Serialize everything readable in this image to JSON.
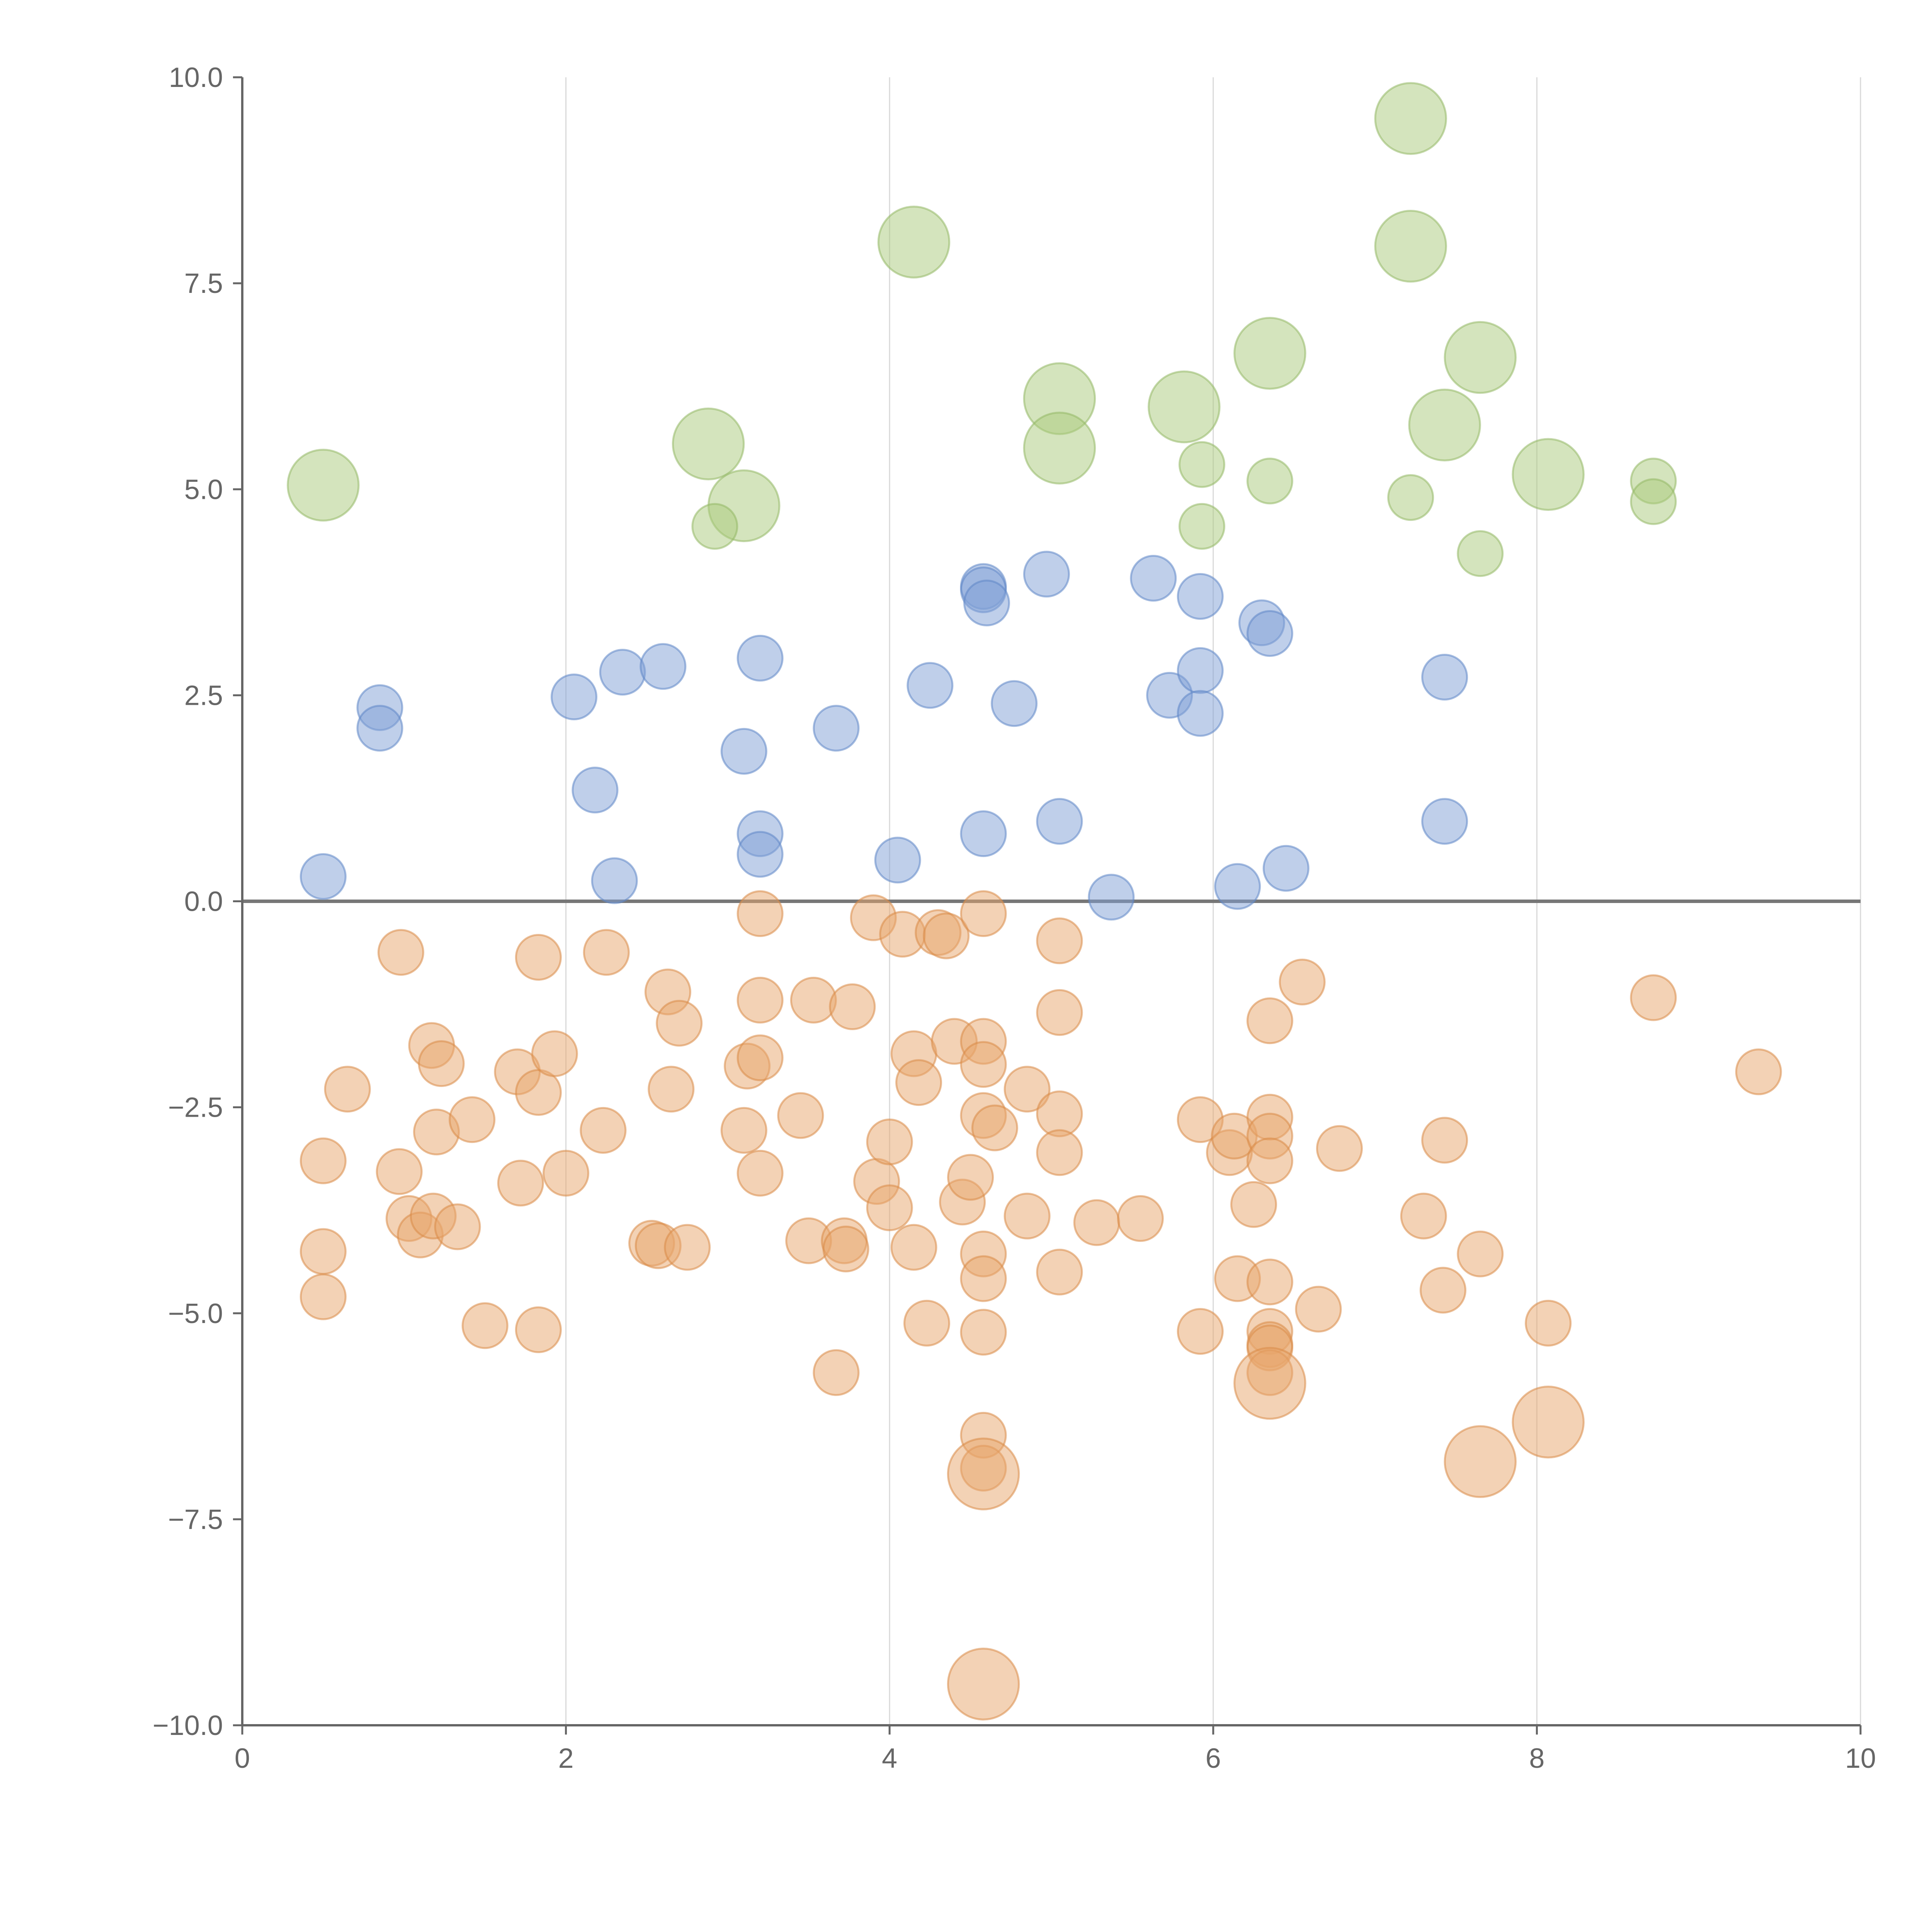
{
  "chart_data": {
    "type": "scatter",
    "subtype": "bubble",
    "title": "",
    "xlabel": "",
    "ylabel": "",
    "xlim": [
      0,
      10
    ],
    "ylim": [
      -10,
      10
    ],
    "x_ticks": [
      0,
      2,
      4,
      6,
      8,
      10
    ],
    "y_ticks": [
      -10,
      -7.5,
      -5,
      -2.5,
      0,
      2.5,
      5,
      7.5,
      10
    ],
    "x_tick_labels": [
      "0",
      "2",
      "4",
      "6",
      "8",
      "10"
    ],
    "y_tick_labels": [
      "−10.0",
      "−7.5",
      "−5.0",
      "−2.5",
      "0.0",
      "2.5",
      "5.0",
      "7.5",
      "10.0"
    ],
    "grid": {
      "vertical": true,
      "horizontal": false
    },
    "reference_line_y": 0,
    "legend": "none",
    "series": [
      {
        "name": "green",
        "color": "#a9c97b",
        "stroke": "#94b866",
        "size_unit": "relative",
        "points": [
          [
            0.5,
            5.05,
            2.5
          ],
          [
            2.88,
            5.55,
            2.5
          ],
          [
            3.1,
            4.8,
            2.5
          ],
          [
            2.92,
            4.55,
            1
          ],
          [
            4.15,
            8.0,
            2.5
          ],
          [
            5.05,
            6.1,
            2.5
          ],
          [
            5.05,
            5.5,
            2.5
          ],
          [
            5.82,
            6.0,
            2.5
          ],
          [
            5.93,
            5.3,
            1
          ],
          [
            5.93,
            4.55,
            1
          ],
          [
            6.35,
            6.65,
            2.5
          ],
          [
            6.35,
            5.1,
            1
          ],
          [
            7.22,
            9.5,
            2.5
          ],
          [
            7.22,
            7.95,
            2.5
          ],
          [
            7.22,
            4.9,
            1
          ],
          [
            7.43,
            5.78,
            2.5
          ],
          [
            7.65,
            6.6,
            2.5
          ],
          [
            7.65,
            4.22,
            1
          ],
          [
            8.07,
            5.18,
            2.5
          ],
          [
            8.72,
            5.1,
            1
          ],
          [
            8.72,
            4.85,
            1
          ]
        ]
      },
      {
        "name": "blue",
        "color": "#7fa0d5",
        "stroke": "#5f86c6",
        "size_unit": "relative",
        "points": [
          [
            0.5,
            0.3,
            1
          ],
          [
            0.85,
            2.35,
            1
          ],
          [
            0.85,
            2.1,
            1
          ],
          [
            2.05,
            2.48,
            1
          ],
          [
            2.18,
            1.35,
            1
          ],
          [
            2.3,
            0.25,
            1
          ],
          [
            2.35,
            2.78,
            1
          ],
          [
            2.6,
            2.85,
            1
          ],
          [
            3.1,
            1.82,
            1
          ],
          [
            3.2,
            2.95,
            1
          ],
          [
            3.2,
            0.82,
            1
          ],
          [
            3.2,
            0.57,
            1
          ],
          [
            3.67,
            2.1,
            1
          ],
          [
            4.05,
            0.5,
            1
          ],
          [
            4.25,
            2.62,
            1
          ],
          [
            4.58,
            3.82,
            1
          ],
          [
            4.58,
            3.78,
            1
          ],
          [
            4.6,
            3.62,
            1
          ],
          [
            4.58,
            0.82,
            1
          ],
          [
            4.77,
            2.4,
            1
          ],
          [
            4.97,
            3.97,
            1
          ],
          [
            5.05,
            0.97,
            1
          ],
          [
            5.37,
            0.05,
            1
          ],
          [
            5.63,
            3.92,
            1
          ],
          [
            5.73,
            2.5,
            1
          ],
          [
            5.92,
            3.7,
            1
          ],
          [
            5.92,
            2.8,
            1
          ],
          [
            5.92,
            2.28,
            1
          ],
          [
            6.15,
            0.18,
            1
          ],
          [
            6.3,
            3.38,
            1
          ],
          [
            6.35,
            3.25,
            1
          ],
          [
            6.45,
            0.4,
            1
          ],
          [
            7.43,
            2.72,
            1
          ],
          [
            7.43,
            0.97,
            1
          ]
        ]
      },
      {
        "name": "orange",
        "color": "#e8a56b",
        "stroke": "#d98a47",
        "size_unit": "relative",
        "points": [
          [
            0.5,
            -3.15,
            1
          ],
          [
            0.5,
            -4.25,
            1
          ],
          [
            0.5,
            -4.8,
            1
          ],
          [
            0.65,
            -2.28,
            1
          ],
          [
            0.97,
            -3.28,
            1
          ],
          [
            0.98,
            -0.62,
            1
          ],
          [
            1.03,
            -3.85,
            1
          ],
          [
            1.1,
            -4.05,
            1
          ],
          [
            1.17,
            -1.75,
            1
          ],
          [
            1.18,
            -3.82,
            1
          ],
          [
            1.2,
            -2.8,
            1
          ],
          [
            1.23,
            -1.97,
            1
          ],
          [
            1.33,
            -3.95,
            1
          ],
          [
            1.42,
            -2.65,
            1
          ],
          [
            1.5,
            -5.15,
            1
          ],
          [
            1.7,
            -2.07,
            1
          ],
          [
            1.72,
            -3.42,
            1
          ],
          [
            1.83,
            -0.68,
            1
          ],
          [
            1.83,
            -2.32,
            1
          ],
          [
            1.83,
            -5.2,
            1
          ],
          [
            1.93,
            -1.85,
            1
          ],
          [
            2.0,
            -3.3,
            1
          ],
          [
            2.23,
            -2.78,
            1
          ],
          [
            2.25,
            -0.62,
            1
          ],
          [
            2.53,
            -4.15,
            1
          ],
          [
            2.57,
            -4.18,
            1
          ],
          [
            2.63,
            -1.1,
            1
          ],
          [
            2.65,
            -2.28,
            1
          ],
          [
            2.7,
            -1.48,
            1
          ],
          [
            2.75,
            -4.2,
            1
          ],
          [
            3.1,
            -2.78,
            1
          ],
          [
            3.12,
            -2.0,
            1
          ],
          [
            3.2,
            -0.15,
            1
          ],
          [
            3.2,
            -1.2,
            1
          ],
          [
            3.2,
            -1.9,
            1
          ],
          [
            3.2,
            -3.3,
            1
          ],
          [
            3.45,
            -2.6,
            1
          ],
          [
            3.5,
            -4.12,
            1
          ],
          [
            3.53,
            -1.2,
            1
          ],
          [
            3.67,
            -5.72,
            1
          ],
          [
            3.72,
            -4.12,
            1
          ],
          [
            3.73,
            -4.22,
            1
          ],
          [
            3.77,
            -1.28,
            1
          ],
          [
            3.9,
            -0.2,
            1
          ],
          [
            3.92,
            -3.4,
            1
          ],
          [
            4.0,
            -2.92,
            1
          ],
          [
            4.0,
            -3.72,
            1
          ],
          [
            4.08,
            -0.4,
            1
          ],
          [
            4.15,
            -1.85,
            1
          ],
          [
            4.15,
            -4.2,
            1
          ],
          [
            4.18,
            -2.2,
            1
          ],
          [
            4.23,
            -5.12,
            1
          ],
          [
            4.3,
            -0.38,
            1
          ],
          [
            4.35,
            -0.42,
            1
          ],
          [
            4.4,
            -1.7,
            1
          ],
          [
            4.45,
            -3.65,
            1
          ],
          [
            4.5,
            -3.35,
            1
          ],
          [
            4.58,
            -0.15,
            1
          ],
          [
            4.58,
            -1.7,
            1
          ],
          [
            4.58,
            -1.98,
            1
          ],
          [
            4.58,
            -2.6,
            1
          ],
          [
            4.58,
            -4.28,
            1
          ],
          [
            4.58,
            -4.58,
            1
          ],
          [
            4.58,
            -5.23,
            1
          ],
          [
            4.58,
            -6.48,
            1
          ],
          [
            4.58,
            -6.88,
            1
          ],
          [
            4.58,
            -6.95,
            2.5
          ],
          [
            4.58,
            -9.5,
            2.5
          ],
          [
            4.65,
            -2.75,
            1
          ],
          [
            4.85,
            -2.28,
            1
          ],
          [
            4.85,
            -3.82,
            1
          ],
          [
            5.05,
            -0.48,
            1
          ],
          [
            5.05,
            -1.35,
            1
          ],
          [
            5.05,
            -2.58,
            1
          ],
          [
            5.05,
            -3.05,
            1
          ],
          [
            5.05,
            -4.5,
            1
          ],
          [
            5.28,
            -3.9,
            1
          ],
          [
            5.55,
            -3.85,
            1
          ],
          [
            5.92,
            -2.65,
            1
          ],
          [
            5.92,
            -5.22,
            1
          ],
          [
            6.1,
            -3.05,
            1
          ],
          [
            6.13,
            -2.85,
            1
          ],
          [
            6.15,
            -4.58,
            1
          ],
          [
            6.25,
            -3.68,
            1
          ],
          [
            6.35,
            -1.45,
            1
          ],
          [
            6.35,
            -2.62,
            1
          ],
          [
            6.35,
            -2.85,
            1
          ],
          [
            6.35,
            -3.15,
            1
          ],
          [
            6.35,
            -4.62,
            1
          ],
          [
            6.35,
            -5.22,
            1
          ],
          [
            6.35,
            -5.38,
            1
          ],
          [
            6.35,
            -5.42,
            1
          ],
          [
            6.35,
            -5.72,
            1
          ],
          [
            6.35,
            -5.85,
            2.5
          ],
          [
            6.55,
            -0.98,
            1
          ],
          [
            6.65,
            -4.95,
            1
          ],
          [
            6.78,
            -3.0,
            1
          ],
          [
            7.3,
            -3.82,
            1
          ],
          [
            7.42,
            -4.72,
            1
          ],
          [
            7.43,
            -2.9,
            1
          ],
          [
            7.65,
            -4.28,
            1
          ],
          [
            7.65,
            -6.8,
            2.5
          ],
          [
            8.07,
            -5.12,
            1
          ],
          [
            8.07,
            -6.32,
            2.5
          ],
          [
            8.72,
            -1.17,
            1
          ],
          [
            9.37,
            -2.07,
            1
          ]
        ]
      }
    ]
  }
}
